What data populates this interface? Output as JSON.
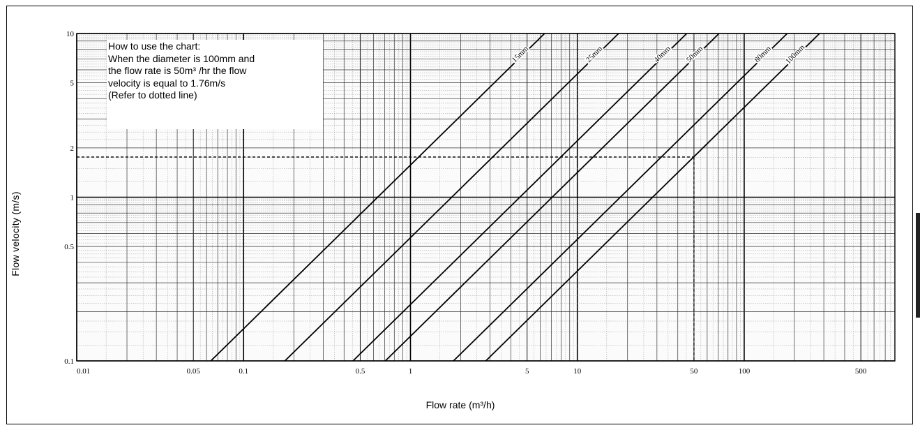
{
  "chart_data": {
    "type": "line",
    "scale": "log-log",
    "xlabel": "Flow rate (m³/h)",
    "ylabel": "Flow velocity (m/s)",
    "xlim": [
      0.01,
      800
    ],
    "ylim": [
      0.1,
      10
    ],
    "x_tick_labels": [
      "0.01",
      "0.05",
      "0.1",
      "0.5",
      "1",
      "5",
      "10",
      "50",
      "100",
      "500"
    ],
    "x_ticks": [
      0.01,
      0.05,
      0.1,
      0.5,
      1,
      5,
      10,
      50,
      100,
      500
    ],
    "y_tick_labels": [
      "0.1",
      "0.5",
      "1",
      "2",
      "5",
      "10"
    ],
    "y_ticks": [
      0.1,
      0.5,
      1,
      2,
      5,
      10
    ],
    "grid": true,
    "series": [
      {
        "name": "15mm",
        "diameter_mm": 15,
        "color": "#000000"
      },
      {
        "name": "25mm",
        "diameter_mm": 25,
        "color": "#000000"
      },
      {
        "name": "40mm",
        "diameter_mm": 40,
        "color": "#000000"
      },
      {
        "name": "50mm",
        "diameter_mm": 50,
        "color": "#000000"
      },
      {
        "name": "80mm",
        "diameter_mm": 80,
        "color": "#000000"
      },
      {
        "name": "100mm",
        "diameter_mm": 100,
        "color": "#000000"
      }
    ],
    "reference_point": {
      "x": 50,
      "y": 1.76
    }
  },
  "note": {
    "title": "How to use the chart:",
    "lines": [
      "When the diameter is 100mm and",
      "the flow rate is 50m³ /hr the flow",
      "velocity is equal to 1.76m/s",
      "(Refer to dotted line)"
    ]
  }
}
